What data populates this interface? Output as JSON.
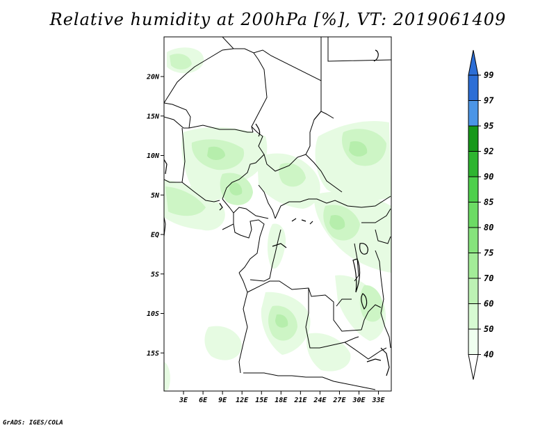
{
  "title": "Relative humidity at 200hPa [%], VT: 2019061409",
  "credit": "GrADS: IGES/COLA",
  "axes": {
    "lat_labels": [
      {
        "label": "20N",
        "lat": 20
      },
      {
        "label": "15N",
        "lat": 15
      },
      {
        "label": "10N",
        "lat": 10
      },
      {
        "label": "5N",
        "lat": 5
      },
      {
        "label": "EQ",
        "lat": 0
      },
      {
        "label": "5S",
        "lat": -5
      },
      {
        "label": "10S",
        "lat": -10
      },
      {
        "label": "15S",
        "lat": -15
      }
    ],
    "lon_labels": [
      {
        "label": "3E",
        "lon": 3
      },
      {
        "label": "6E",
        "lon": 6
      },
      {
        "label": "9E",
        "lon": 9
      },
      {
        "label": "12E",
        "lon": 12
      },
      {
        "label": "15E",
        "lon": 15
      },
      {
        "label": "18E",
        "lon": 18
      },
      {
        "label": "21E",
        "lon": 21
      },
      {
        "label": "24E",
        "lon": 24
      },
      {
        "label": "27E",
        "lon": 27
      },
      {
        "label": "30E",
        "lon": 30
      },
      {
        "label": "33E",
        "lon": 33
      }
    ]
  },
  "colorbar": {
    "segments": [
      {
        "label": "40",
        "color": "#f0fff0"
      },
      {
        "label": "50",
        "color": "#d7fad2"
      },
      {
        "label": "60",
        "color": "#bdf2b4"
      },
      {
        "label": "70",
        "color": "#a3ec98"
      },
      {
        "label": "75",
        "color": "#86e37c"
      },
      {
        "label": "80",
        "color": "#6cdb64"
      },
      {
        "label": "85",
        "color": "#4ed04c"
      },
      {
        "label": "90",
        "color": "#2eb530"
      },
      {
        "label": "92",
        "color": "#17981a"
      },
      {
        "label": "95",
        "color": "#4b95e6"
      },
      {
        "label": "97",
        "color": "#2c6ed6"
      },
      {
        "label": "99",
        "color": "#1d56c7"
      }
    ],
    "below_color": "#ffffff",
    "above_color": "#2c6ed6"
  },
  "colors": {
    "field_light": "#e6fbe2",
    "field_mid": "#d2f7cc",
    "field_dark": "#b9f0b0",
    "border": "#000000"
  }
}
